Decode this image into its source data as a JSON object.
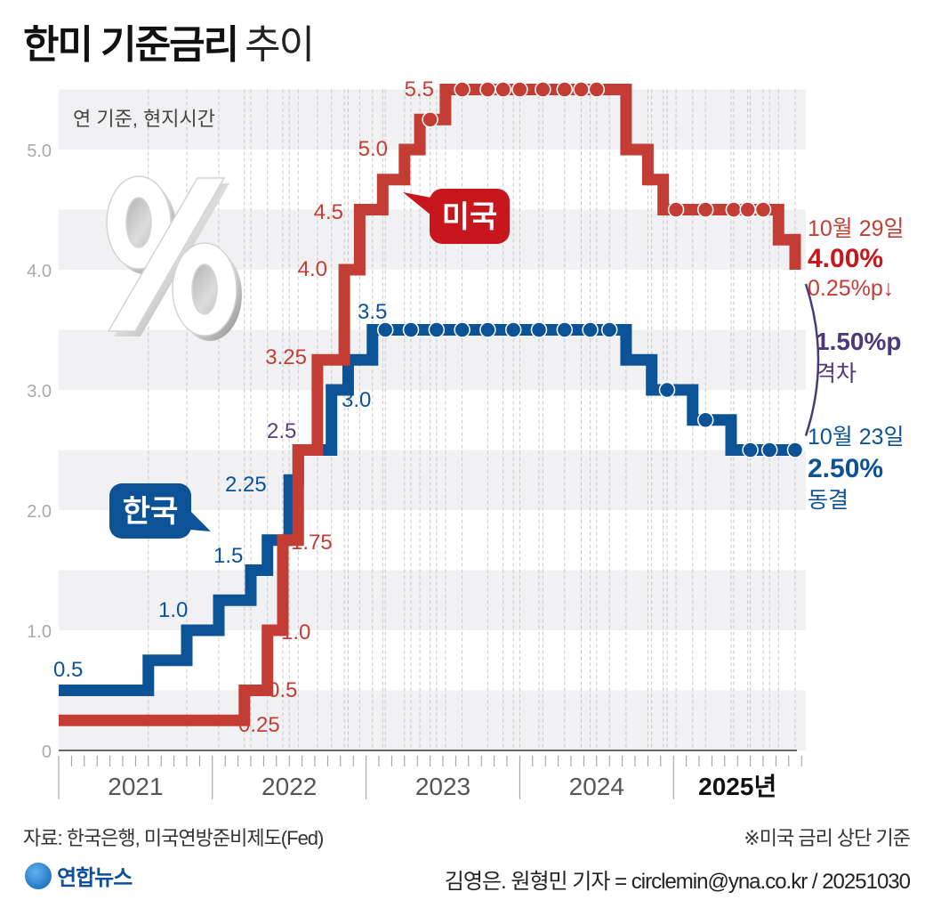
{
  "header": {
    "title_bold": "한미 기준금리",
    "title_light": "추이"
  },
  "chart_data": {
    "type": "line",
    "step": true,
    "title": "한미 기준금리 추이",
    "subtitle": "연 기준, 현지시간",
    "ylabel": "%",
    "xlabel": "",
    "ylim": [
      0,
      5.5
    ],
    "yticks": [
      {
        "value": 0,
        "label": "0"
      },
      {
        "value": 1,
        "label": "1.0"
      },
      {
        "value": 2,
        "label": "2.0"
      },
      {
        "value": 3,
        "label": "3.0"
      },
      {
        "value": 4,
        "label": "4.0"
      },
      {
        "value": 5,
        "label": "5.0"
      }
    ],
    "xlim_months": [
      0,
      58
    ],
    "x_unit": "months since Jan 2021",
    "year_labels": [
      {
        "start": 0,
        "end": 12,
        "label": "2021"
      },
      {
        "start": 12,
        "end": 24,
        "label": "2022"
      },
      {
        "start": 24,
        "end": 36,
        "label": "2023"
      },
      {
        "start": 36,
        "end": 48,
        "label": "2024"
      },
      {
        "start": 48,
        "end": 58,
        "label": "2025년"
      }
    ],
    "grid": true,
    "series": [
      {
        "name": "한국",
        "color": "#0c5296",
        "points": [
          {
            "x": 0,
            "y": 0.5
          },
          {
            "x": 7,
            "y": 0.75
          },
          {
            "x": 10,
            "y": 1.0
          },
          {
            "x": 12.5,
            "y": 1.25
          },
          {
            "x": 15,
            "y": 1.5
          },
          {
            "x": 16.3,
            "y": 1.75
          },
          {
            "x": 18,
            "y": 2.25
          },
          {
            "x": 18.7,
            "y": 2.5
          },
          {
            "x": 21.3,
            "y": 3.0
          },
          {
            "x": 22.6,
            "y": 3.25
          },
          {
            "x": 24.5,
            "y": 3.5
          },
          {
            "x": 44.3,
            "y": 3.25
          },
          {
            "x": 46.3,
            "y": 3.0
          },
          {
            "x": 49.5,
            "y": 2.75
          },
          {
            "x": 52.5,
            "y": 2.5
          },
          {
            "x": 57.5,
            "y": 2.5
          }
        ],
        "hold_markers": [
          25.5,
          27.5,
          29.5,
          31.5,
          33.5,
          35.5,
          37.5,
          39.5,
          41.5,
          43,
          47.5,
          50.5,
          54,
          55.5,
          57.5
        ],
        "labels": [
          {
            "x": 0,
            "y": 0.5,
            "text": "0.5"
          },
          {
            "x": 10,
            "y": 1.0,
            "text": "1.0"
          },
          {
            "x": 15,
            "y": 1.5,
            "text": "1.5"
          },
          {
            "x": 18,
            "y": 2.25,
            "text": "2.25"
          },
          {
            "x": 18.7,
            "y": 2.5,
            "text": "2.5"
          },
          {
            "x": 21.3,
            "y": 3.0,
            "text": "3.0"
          },
          {
            "x": 24.5,
            "y": 3.5,
            "text": "3.5"
          }
        ],
        "final_date": "10월 23일",
        "final_value": "2.50%",
        "final_note": "동결"
      },
      {
        "name": "미국",
        "color": "#c43d35",
        "points": [
          {
            "x": 0,
            "y": 0.25
          },
          {
            "x": 14.5,
            "y": 0.5
          },
          {
            "x": 16.3,
            "y": 1.0
          },
          {
            "x": 17.5,
            "y": 1.75
          },
          {
            "x": 18.7,
            "y": 2.5
          },
          {
            "x": 20.2,
            "y": 3.25
          },
          {
            "x": 22.3,
            "y": 4.0
          },
          {
            "x": 23.5,
            "y": 4.5
          },
          {
            "x": 25.3,
            "y": 4.75
          },
          {
            "x": 27,
            "y": 5.0
          },
          {
            "x": 28.2,
            "y": 5.25
          },
          {
            "x": 30.2,
            "y": 5.5
          },
          {
            "x": 44.3,
            "y": 5.0
          },
          {
            "x": 46,
            "y": 4.75
          },
          {
            "x": 47.2,
            "y": 4.5
          },
          {
            "x": 56.2,
            "y": 4.25
          },
          {
            "x": 57.5,
            "y": 4.0
          }
        ],
        "hold_markers": [
          29,
          31.5,
          33.5,
          34.7,
          36,
          37.8,
          39.5,
          40.8,
          42,
          48.2,
          50.5,
          52.7,
          53.8,
          55
        ],
        "labels": [
          {
            "x": 14.5,
            "y": 0.25,
            "text": "0.25"
          },
          {
            "x": 16.3,
            "y": 0.5,
            "text": "0.5"
          },
          {
            "x": 17.5,
            "y": 1.0,
            "text": "1.0"
          },
          {
            "x": 18.7,
            "y": 1.75,
            "text": "1.75"
          },
          {
            "x": 20.2,
            "y": 3.25,
            "text": "3.25"
          },
          {
            "x": 22.3,
            "y": 4.0,
            "text": "4.0"
          },
          {
            "x": 23.5,
            "y": 4.5,
            "text": "4.5"
          },
          {
            "x": 27,
            "y": 5.0,
            "text": "5.0"
          },
          {
            "x": 30.2,
            "y": 5.5,
            "text": "5.5"
          }
        ],
        "final_date": "10월 29일",
        "final_value": "4.00%",
        "final_note": "0.25%p↓"
      }
    ],
    "shared_label": {
      "text": "2.5",
      "color": "#5a3f86"
    },
    "gap": {
      "value": "1.50%p",
      "label": "격차",
      "color": "#4b3a7a"
    }
  },
  "footer": {
    "source": "자료: 한국은행, 미국연방준비제도(Fed)",
    "note": "※미국 금리 상단 기준",
    "credit": "김영은. 원형민 기자 = circlemin@yna.co.kr / 20251030",
    "logo_text": "연합뉴스"
  }
}
